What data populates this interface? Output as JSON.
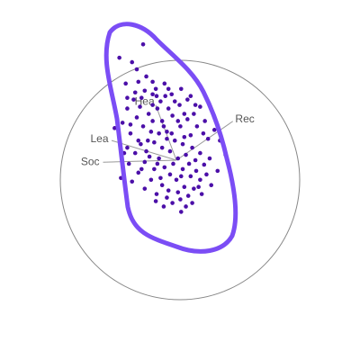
{
  "chart_data": {
    "type": "scatter",
    "subtype": "radviz",
    "title": "",
    "anchors": [
      {
        "label": "Hea",
        "angle_deg": 108
      },
      {
        "label": "Rec",
        "angle_deg": 48
      },
      {
        "label": "Soc",
        "angle_deg": 167
      },
      {
        "label": "Lea",
        "angle_deg": 150
      }
    ],
    "points": [
      [
        -0.54,
        0.68
      ],
      [
        -0.25,
        0.72
      ],
      [
        -0.62,
        0.58
      ],
      [
        -0.5,
        0.48
      ],
      [
        -0.35,
        0.52
      ],
      [
        -0.3,
        0.44
      ],
      [
        -0.42,
        0.38
      ],
      [
        -0.22,
        0.3
      ],
      [
        -0.58,
        0.3
      ],
      [
        -0.48,
        0.22
      ],
      [
        -0.28,
        0.2
      ],
      [
        -0.18,
        0.14
      ],
      [
        -0.38,
        0.1
      ],
      [
        -0.52,
        0.08
      ],
      [
        -0.22,
        0.02
      ],
      [
        -0.4,
        -0.02
      ],
      [
        -0.28,
        -0.1
      ],
      [
        -0.15,
        -0.08
      ],
      [
        -0.48,
        -0.14
      ],
      [
        -0.32,
        -0.22
      ],
      [
        -0.18,
        -0.28
      ],
      [
        -0.4,
        -0.32
      ],
      [
        -0.25,
        -0.38
      ],
      [
        -0.12,
        -0.42
      ],
      [
        -0.05,
        -0.48
      ],
      [
        0.05,
        -0.44
      ],
      [
        0.15,
        -0.4
      ],
      [
        0.22,
        -0.32
      ],
      [
        0.1,
        -0.3
      ],
      [
        0.0,
        -0.22
      ],
      [
        0.18,
        -0.18
      ],
      [
        0.08,
        -0.1
      ],
      [
        0.25,
        -0.12
      ],
      [
        0.3,
        -0.22
      ],
      [
        0.02,
        0.02
      ],
      [
        0.12,
        0.06
      ],
      [
        0.2,
        0.14
      ],
      [
        0.08,
        0.18
      ],
      [
        0.18,
        0.28
      ],
      [
        0.26,
        0.38
      ],
      [
        -0.08,
        0.1
      ],
      [
        -0.02,
        0.22
      ],
      [
        -0.12,
        0.32
      ],
      [
        0.14,
        0.46
      ],
      [
        0.05,
        0.38
      ],
      [
        -0.18,
        0.44
      ],
      [
        0.22,
        0.52
      ],
      [
        0.3,
        0.08
      ],
      [
        0.35,
        -0.05
      ],
      [
        0.38,
        -0.16
      ],
      [
        -0.08,
        -0.16
      ],
      [
        -0.2,
        -0.2
      ],
      [
        -0.1,
        -0.34
      ],
      [
        0.02,
        -0.36
      ],
      [
        0.28,
        -0.3
      ],
      [
        -0.32,
        0.32
      ],
      [
        -0.45,
        0.18
      ],
      [
        -0.1,
        0.58
      ],
      [
        0.04,
        0.62
      ],
      [
        0.1,
        0.26
      ],
      [
        -0.24,
        0.58
      ],
      [
        -0.05,
        0.5
      ],
      [
        0.12,
        -0.52
      ],
      [
        0.06,
        -0.58
      ],
      [
        -0.62,
        0.14
      ],
      [
        -0.6,
        -0.04
      ],
      [
        -0.56,
        -0.24
      ],
      [
        -0.3,
        0.62
      ],
      [
        0.24,
        0.62
      ],
      [
        0.4,
        0.24
      ],
      [
        -0.68,
        0.42
      ],
      [
        -0.4,
        0.78
      ],
      [
        -0.78,
        0.36
      ],
      [
        -0.7,
        -0.2
      ],
      [
        0.62,
        0.06
      ],
      [
        0.52,
        -0.12
      ],
      [
        0.55,
        0.22
      ],
      [
        0.48,
        0.34
      ],
      [
        0.3,
        0.6
      ],
      [
        0.18,
        0.72
      ],
      [
        -0.15,
        0.86
      ],
      [
        -0.06,
        0.74
      ],
      [
        -0.48,
        0.88
      ],
      [
        -0.72,
        1.15
      ],
      [
        -0.42,
        1.3
      ],
      [
        -0.56,
        1.1
      ],
      [
        -0.5,
        1.02
      ],
      [
        -0.64,
        0.86
      ],
      [
        -0.38,
        0.94
      ],
      [
        -0.3,
        0.88
      ],
      [
        -0.46,
        0.6
      ],
      [
        -0.12,
        0.24
      ],
      [
        -0.34,
        0.04
      ],
      [
        -0.04,
        -0.04
      ],
      [
        0.06,
        -0.18
      ],
      [
        -0.26,
        -0.46
      ],
      [
        -0.16,
        -0.52
      ],
      [
        0.2,
        -0.48
      ],
      [
        0.32,
        -0.38
      ],
      [
        0.44,
        -0.28
      ],
      [
        0.42,
        0.02
      ],
      [
        0.34,
        0.3
      ],
      [
        0.36,
        0.44
      ],
      [
        -0.36,
        0.22
      ],
      [
        -0.58,
        0.4
      ],
      [
        -0.66,
        0.08
      ],
      [
        -0.44,
        -0.1
      ],
      [
        -0.24,
        -0.04
      ],
      [
        0.16,
        -0.04
      ],
      [
        0.24,
        0.0
      ],
      [
        -0.06,
        0.3
      ],
      [
        0.02,
        0.44
      ],
      [
        -0.16,
        0.38
      ],
      [
        0.1,
        0.52
      ],
      [
        -0.02,
        0.66
      ],
      [
        -0.2,
        0.66
      ],
      [
        0.14,
        0.68
      ],
      [
        -0.3,
        0.74
      ],
      [
        -0.1,
        0.8
      ],
      [
        0.06,
        0.8
      ],
      [
        -0.52,
        0.76
      ],
      [
        -0.62,
        0.7
      ],
      [
        -0.26,
        0.8
      ],
      [
        -0.44,
        0.7
      ],
      [
        -0.14,
        0.72
      ]
    ]
  }
}
